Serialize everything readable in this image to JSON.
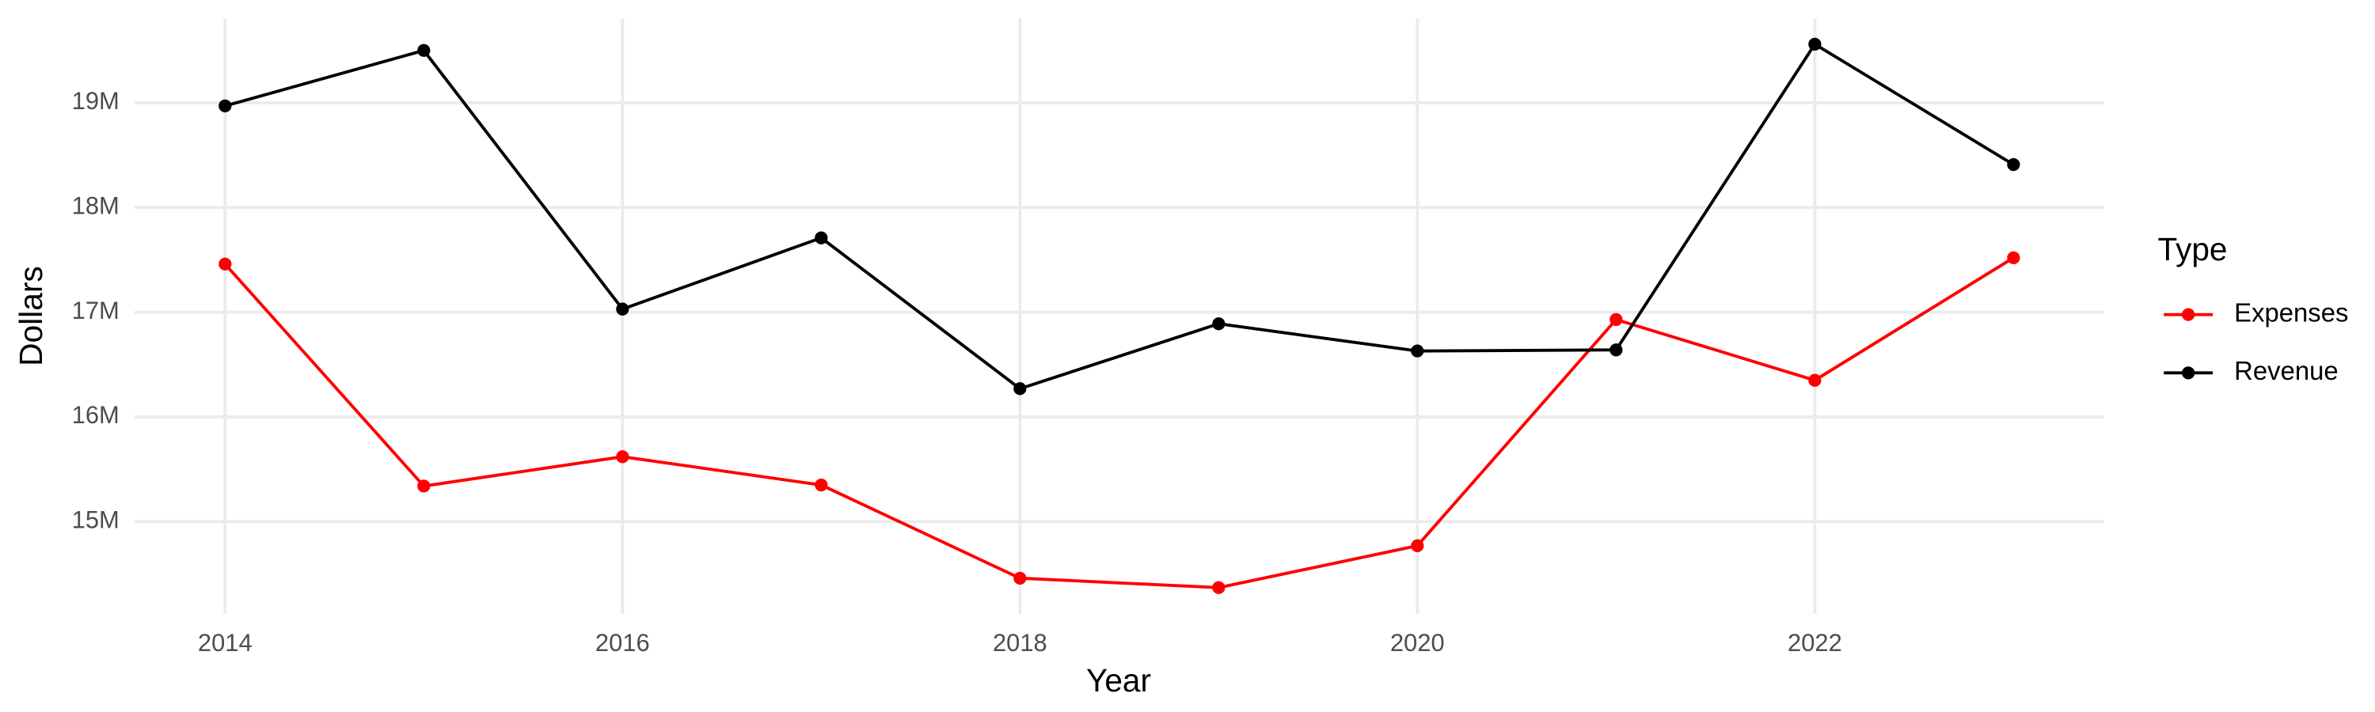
{
  "chart_data": {
    "type": "line",
    "x_label": "Year",
    "y_label": "Dollars",
    "legend_title": "Type",
    "x": [
      2014,
      2015,
      2016,
      2017,
      2018,
      2019,
      2020,
      2021,
      2022,
      2023
    ],
    "series": [
      {
        "name": "Expenses",
        "color": "#ff0000",
        "values": [
          17460000,
          15340000,
          15620000,
          15350000,
          14460000,
          14370000,
          14770000,
          16930000,
          16350000,
          17520000
        ]
      },
      {
        "name": "Revenue",
        "color": "#000000",
        "values": [
          18970000,
          19500000,
          17030000,
          17710000,
          16270000,
          16890000,
          16630000,
          16640000,
          19560000,
          18410000
        ]
      }
    ],
    "xlim": [
      2013.545,
      2023.456
    ],
    "ylim": [
      14120000,
      19806000
    ],
    "xticks": [
      2014,
      2016,
      2018,
      2020,
      2022
    ],
    "yticks": [
      {
        "value": 15000000,
        "label": "15M"
      },
      {
        "value": 16000000,
        "label": "16M"
      },
      {
        "value": 17000000,
        "label": "17M"
      },
      {
        "value": 18000000,
        "label": "18M"
      },
      {
        "value": 19000000,
        "label": "19M"
      }
    ],
    "grid": true,
    "legend_position": "right"
  }
}
